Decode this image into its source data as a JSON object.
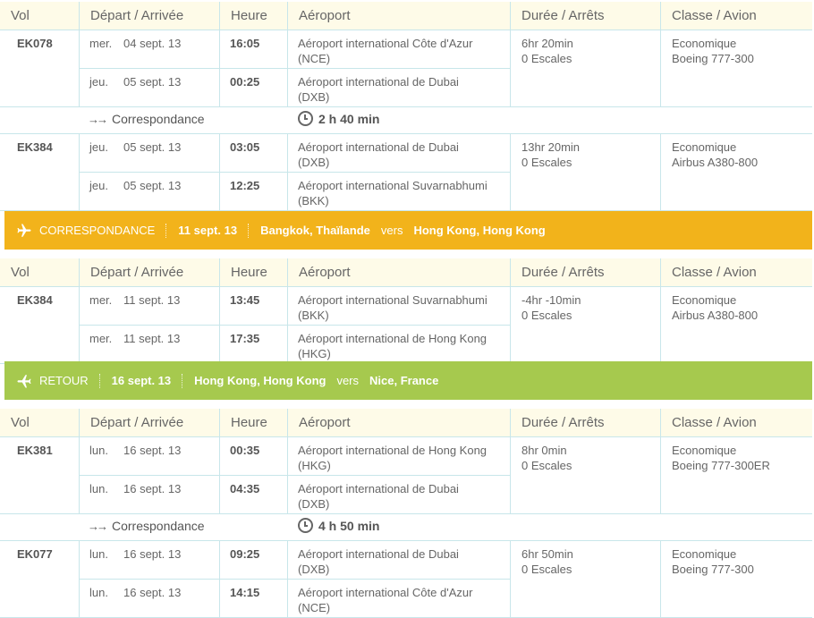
{
  "headers": [
    "Vol",
    "Départ / Arrivée",
    "Heure",
    "Aéroport",
    "Durée / Arrêts",
    "Classe / Avion"
  ],
  "colors": {
    "orange": "#f2b31b",
    "green": "#a6c94e",
    "border": "#c8e6ea",
    "header_bg": "#fefbe8"
  },
  "flights": [
    {
      "flight": "EK078",
      "dep_day": "mer.",
      "dep_date": "04 sept. 13",
      "dep_time": "16:05",
      "dep_airport": "Aéroport international Côte d'Azur",
      "dep_code": "(NCE)",
      "arr_day": "jeu.",
      "arr_date": "05 sept. 13",
      "arr_time": "00:25",
      "arr_airport": "Aéroport international de Dubai",
      "arr_code": "(DXB)",
      "duration": "6hr 20min",
      "stops": "0 Escales",
      "cabin": "Economique",
      "aircraft": "Boeing 777-300"
    },
    {
      "flight": "EK384",
      "dep_day": "jeu.",
      "dep_date": "05 sept. 13",
      "dep_time": "03:05",
      "dep_airport": "Aéroport international de Dubai",
      "dep_code": "(DXB)",
      "arr_day": "jeu.",
      "arr_date": "05 sept. 13",
      "arr_time": "12:25",
      "arr_airport": "Aéroport international Suvarnabhumi",
      "arr_code": "(BKK)",
      "duration": "13hr 20min",
      "stops": "0 Escales",
      "cabin": "Economique",
      "aircraft": "Airbus A380-800"
    },
    {
      "flight": "EK384",
      "dep_day": "mer.",
      "dep_date": "11 sept. 13",
      "dep_time": "13:45",
      "dep_airport": "Aéroport international Suvarnabhumi",
      "dep_code": "(BKK)",
      "arr_day": "mer.",
      "arr_date": "11 sept. 13",
      "arr_time": "17:35",
      "arr_airport": "Aéroport international de Hong Kong",
      "arr_code": "(HKG)",
      "duration": "-4hr -10min",
      "stops": "0 Escales",
      "cabin": "Economique",
      "aircraft": "Airbus A380-800"
    },
    {
      "flight": "EK381",
      "dep_day": "lun.",
      "dep_date": "16 sept. 13",
      "dep_time": "00:35",
      "dep_airport": "Aéroport international de Hong Kong",
      "dep_code": "(HKG)",
      "arr_day": "lun.",
      "arr_date": "16 sept. 13",
      "arr_time": "04:35",
      "arr_airport": "Aéroport international de Dubai",
      "arr_code": "(DXB)",
      "duration": "8hr 0min",
      "stops": "0 Escales",
      "cabin": "Economique",
      "aircraft": "Boeing 777-300ER"
    },
    {
      "flight": "EK077",
      "dep_day": "lun.",
      "dep_date": "16 sept. 13",
      "dep_time": "09:25",
      "dep_airport": "Aéroport international de Dubai",
      "dep_code": "(DXB)",
      "arr_day": "lun.",
      "arr_date": "16 sept. 13",
      "arr_time": "14:15",
      "arr_airport": "Aéroport international Côte d'Azur",
      "arr_code": "(NCE)",
      "duration": "6hr 50min",
      "stops": "0 Escales",
      "cabin": "Economique",
      "aircraft": "Boeing 777-300"
    }
  ],
  "connections": [
    {
      "label": "Correspondance",
      "duration": "2 h 40 min"
    },
    {
      "label": "Correspondance",
      "duration": "4 h 50 min"
    }
  ],
  "bands": [
    {
      "title": "CORRESPONDANCE",
      "date": "11 sept. 13",
      "from": "Bangkok, Thaïlande",
      "vers": "vers",
      "to": "Hong Kong, Hong Kong",
      "icon": "plane-icon"
    },
    {
      "title": "RETOUR",
      "date": "16 sept. 13",
      "from": "Hong Kong, Hong Kong",
      "vers": "vers",
      "to": "Nice, France",
      "icon": "plane-return-icon"
    }
  ]
}
